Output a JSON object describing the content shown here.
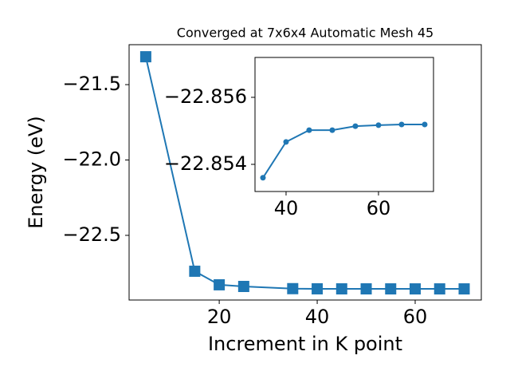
{
  "chart_data": [
    {
      "type": "line",
      "title": "Converged at 7x6x4 Automatic Mesh 45",
      "xlabel": "Increment in K point",
      "ylabel": "Energy (eV)",
      "x": [
        5,
        15,
        20,
        25,
        35,
        40,
        45,
        50,
        55,
        60,
        65,
        70
      ],
      "series": [
        {
          "color": "#1f77b4",
          "marker": "square",
          "values": [
            -21.315,
            -22.738,
            -22.828,
            -22.839,
            -22.8536,
            -22.8547,
            -22.855,
            -22.855,
            -22.8551,
            -22.8552,
            -22.8552,
            -22.8552
          ]
        }
      ],
      "xlim": [
        1.6,
        73.5
      ],
      "ylim": [
        -22.929,
        -21.235
      ],
      "xticks": [
        20,
        40,
        60
      ],
      "yticks": [
        {
          "value": -21.5,
          "label": "−21.5"
        },
        {
          "value": -22.0,
          "label": "−22.0"
        },
        {
          "value": -22.5,
          "label": "−22.5"
        }
      ]
    },
    {
      "type": "line",
      "x": [
        35,
        40,
        45,
        50,
        55,
        60,
        65,
        70
      ],
      "series": [
        {
          "color": "#1f77b4",
          "marker": "circle",
          "values": [
            -22.8536,
            -22.85467,
            -22.85502,
            -22.85502,
            -22.85514,
            -22.85517,
            -22.85519,
            -22.85519
          ]
        }
      ],
      "xlim": [
        33.28,
        71.9
      ],
      "ylim": [
        -22.85319,
        -22.85719
      ],
      "xticks": [
        40,
        60
      ],
      "yticks": [
        {
          "value": -22.856,
          "label": "−22.856"
        },
        {
          "value": -22.854,
          "label": "−22.854"
        }
      ]
    }
  ]
}
